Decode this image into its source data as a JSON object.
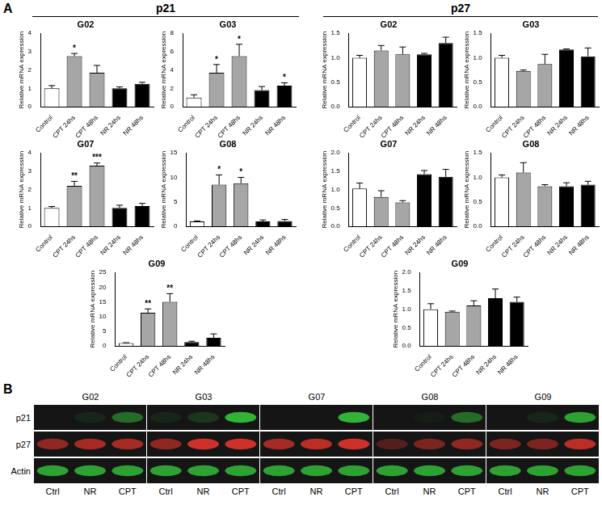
{
  "panel_a": {
    "label": "A",
    "group_titles": [
      "p21",
      "p27"
    ]
  },
  "chart_data": [
    {
      "type": "bar",
      "title": "G02",
      "y_label": "Relative mRNA expression",
      "categories": [
        "Control",
        "CPT 24hs",
        "CPT 48hs",
        "NR 24hs",
        "NR 48hs"
      ],
      "values": [
        1.0,
        2.75,
        1.85,
        1.0,
        1.25
      ],
      "errors": [
        0.15,
        0.15,
        0.4,
        0.08,
        0.08
      ],
      "significance": [
        null,
        "*",
        null,
        null,
        null
      ],
      "colors": [
        "#ffffff",
        "#a6a6a6",
        "#a6a6a6",
        "#000000",
        "#000000"
      ],
      "ylim": [
        0,
        4
      ],
      "yticks": [
        0,
        1,
        2,
        3,
        4
      ],
      "grid": false
    },
    {
      "type": "bar",
      "title": "G03",
      "y_label": "Relative mRNA expression",
      "categories": [
        "Control",
        "CPT 24hs",
        "CPT 48hs",
        "NR 24hs",
        "NR 48hs"
      ],
      "values": [
        1.0,
        3.7,
        5.5,
        1.8,
        2.3
      ],
      "errors": [
        0.3,
        0.9,
        1.3,
        0.4,
        0.3
      ],
      "significance": [
        null,
        "*",
        "*",
        null,
        "*"
      ],
      "colors": [
        "#ffffff",
        "#a6a6a6",
        "#a6a6a6",
        "#000000",
        "#000000"
      ],
      "ylim": [
        0,
        8
      ],
      "yticks": [
        0,
        2,
        4,
        6,
        8
      ],
      "grid": false
    },
    {
      "type": "bar",
      "title": "G07",
      "y_label": "Relative mRNA expression",
      "categories": [
        "Control",
        "CPT 24hs",
        "CPT 48hs",
        "NR 24hs",
        "NR 48hs"
      ],
      "values": [
        1.0,
        2.2,
        3.3,
        1.0,
        1.1
      ],
      "errors": [
        0.08,
        0.25,
        0.15,
        0.15,
        0.15
      ],
      "significance": [
        null,
        "**",
        "***",
        null,
        null
      ],
      "colors": [
        "#ffffff",
        "#a6a6a6",
        "#a6a6a6",
        "#000000",
        "#000000"
      ],
      "ylim": [
        0,
        4
      ],
      "yticks": [
        0,
        1,
        2,
        3,
        4
      ],
      "grid": false
    },
    {
      "type": "bar",
      "title": "G08",
      "y_label": "Relative mRNA expression",
      "categories": [
        "Control",
        "CPT 24hs",
        "CPT 48hs",
        "NR 24hs",
        "NR 48hs"
      ],
      "values": [
        1.0,
        8.5,
        8.8,
        1.0,
        1.1
      ],
      "errors": [
        0.1,
        2.0,
        1.2,
        0.3,
        0.3
      ],
      "significance": [
        null,
        "*",
        "*",
        null,
        null
      ],
      "colors": [
        "#ffffff",
        "#a6a6a6",
        "#a6a6a6",
        "#000000",
        "#000000"
      ],
      "ylim": [
        0,
        15
      ],
      "yticks": [
        0,
        5,
        10,
        15
      ],
      "grid": false
    },
    {
      "type": "bar",
      "title": "G09",
      "y_label": "Relative mRNA expression",
      "categories": [
        "Control",
        "CPT 24hs",
        "CPT 48hs",
        "NR 24hs",
        "NR 48hs"
      ],
      "values": [
        1.0,
        11.3,
        15.0,
        1.3,
        2.8
      ],
      "errors": [
        0.1,
        1.3,
        2.8,
        0.3,
        1.3
      ],
      "significance": [
        null,
        "**",
        "**",
        null,
        null
      ],
      "colors": [
        "#ffffff",
        "#a6a6a6",
        "#a6a6a6",
        "#000000",
        "#000000"
      ],
      "ylim": [
        0,
        25
      ],
      "yticks": [
        0,
        5,
        10,
        15,
        20,
        25
      ],
      "grid": false
    },
    {
      "type": "bar",
      "title": "G02",
      "y_label": "Relative mRNA expression",
      "categories": [
        "Control",
        "CPT 24hs",
        "CPT 48hs",
        "NR 24hs",
        "NR 48hs"
      ],
      "values": [
        1.0,
        1.15,
        1.07,
        1.07,
        1.3
      ],
      "errors": [
        0.05,
        0.1,
        0.15,
        0.02,
        0.12
      ],
      "significance": [
        null,
        null,
        null,
        null,
        null
      ],
      "colors": [
        "#ffffff",
        "#a6a6a6",
        "#a6a6a6",
        "#000000",
        "#000000"
      ],
      "ylim": [
        0,
        1.5
      ],
      "yticks": [
        {
          "value": 0,
          "label": "0.0"
        },
        {
          "value": 0.5,
          "label": "0.5"
        },
        {
          "value": 1,
          "label": "1.0"
        },
        {
          "value": 1.5,
          "label": "1.5"
        }
      ],
      "grid": false
    },
    {
      "type": "bar",
      "title": "G03",
      "y_label": "Relative mRNA expression",
      "categories": [
        "Control",
        "CPT 24hs",
        "CPT 48hs",
        "NR 24hs",
        "NR 48hs"
      ],
      "values": [
        1.0,
        0.73,
        0.87,
        1.17,
        1.03
      ],
      "errors": [
        0.05,
        0.02,
        0.2,
        0.01,
        0.17
      ],
      "significance": [
        null,
        null,
        null,
        null,
        null
      ],
      "colors": [
        "#ffffff",
        "#a6a6a6",
        "#a6a6a6",
        "#000000",
        "#000000"
      ],
      "ylim": [
        0,
        1.5
      ],
      "yticks": [
        {
          "value": 0,
          "label": "0.0"
        },
        {
          "value": 0.5,
          "label": "0.5"
        },
        {
          "value": 1,
          "label": "1.0"
        },
        {
          "value": 1.5,
          "label": "1.5"
        }
      ],
      "grid": false
    },
    {
      "type": "bar",
      "title": "G07",
      "y_label": "Relative mRNA expression",
      "categories": [
        "Control",
        "CPT 24hs",
        "CPT 48hs",
        "NR 24hs",
        "NR 48hs"
      ],
      "values": [
        1.03,
        0.8,
        0.65,
        1.42,
        1.35
      ],
      "errors": [
        0.15,
        0.17,
        0.05,
        0.1,
        0.2
      ],
      "significance": [
        null,
        null,
        null,
        null,
        null
      ],
      "colors": [
        "#ffffff",
        "#a6a6a6",
        "#a6a6a6",
        "#000000",
        "#000000"
      ],
      "ylim": [
        0,
        2
      ],
      "yticks": [
        {
          "value": 0,
          "label": "0.0"
        },
        {
          "value": 0.5,
          "label": "0.5"
        },
        {
          "value": 1,
          "label": "1.0"
        },
        {
          "value": 1.5,
          "label": "1.5"
        },
        {
          "value": 2,
          "label": "2.0"
        }
      ],
      "grid": false
    },
    {
      "type": "bar",
      "title": "G08",
      "y_label": "Relative mRNA expression",
      "categories": [
        "Control",
        "CPT 24hs",
        "CPT 48hs",
        "NR 24hs",
        "NR 48hs"
      ],
      "values": [
        1.0,
        1.1,
        0.82,
        0.82,
        0.85
      ],
      "errors": [
        0.05,
        0.2,
        0.03,
        0.07,
        0.07
      ],
      "significance": [
        null,
        null,
        null,
        null,
        null
      ],
      "colors": [
        "#ffffff",
        "#a6a6a6",
        "#a6a6a6",
        "#000000",
        "#000000"
      ],
      "ylim": [
        0,
        1.5
      ],
      "yticks": [
        {
          "value": 0,
          "label": "0.0"
        },
        {
          "value": 0.5,
          "label": "0.5"
        },
        {
          "value": 1,
          "label": "1.0"
        },
        {
          "value": 1.5,
          "label": "1.5"
        }
      ],
      "grid": false
    },
    {
      "type": "bar",
      "title": "G09",
      "y_label": "Relative mRNA expression",
      "categories": [
        "Control",
        "CPT 24hs",
        "CPT 48hs",
        "NR 24hs",
        "NR 48hs"
      ],
      "values": [
        1.0,
        0.93,
        1.1,
        1.3,
        1.2
      ],
      "errors": [
        0.15,
        0.02,
        0.13,
        0.25,
        0.13
      ],
      "significance": [
        null,
        null,
        null,
        null,
        null
      ],
      "colors": [
        "#ffffff",
        "#a6a6a6",
        "#a6a6a6",
        "#000000",
        "#000000"
      ],
      "ylim": [
        0,
        2
      ],
      "yticks": [
        {
          "value": 0,
          "label": "0.0"
        },
        {
          "value": 0.5,
          "label": "0.5"
        },
        {
          "value": 1,
          "label": "1.0"
        },
        {
          "value": 1.5,
          "label": "1.5"
        },
        {
          "value": 2,
          "label": "2.0"
        }
      ],
      "grid": false
    }
  ],
  "panel_b": {
    "label": "B",
    "rows": [
      "p21",
      "p27",
      "Actin"
    ],
    "row_colors": [
      "#33c43a",
      "#e3342b",
      "#33c43a"
    ],
    "lanes": [
      "Ctrl",
      "NR",
      "CPT"
    ],
    "blocks": [
      {
        "title": "G02",
        "intensity": [
          [
            0.0,
            0.1,
            0.5
          ],
          [
            0.6,
            0.7,
            0.7
          ],
          [
            0.8,
            0.8,
            0.8
          ]
        ]
      },
      {
        "title": "G03",
        "intensity": [
          [
            0.1,
            0.2,
            0.9
          ],
          [
            0.6,
            0.9,
            0.9
          ],
          [
            0.8,
            0.8,
            0.8
          ]
        ]
      },
      {
        "title": "G07",
        "intensity": [
          [
            0.0,
            0.0,
            0.9
          ],
          [
            0.7,
            0.8,
            0.9
          ],
          [
            0.8,
            0.8,
            0.8
          ]
        ]
      },
      {
        "title": "G08",
        "intensity": [
          [
            0.0,
            0.05,
            0.5
          ],
          [
            0.3,
            0.5,
            0.6
          ],
          [
            0.8,
            0.8,
            0.8
          ]
        ]
      },
      {
        "title": "G09",
        "intensity": [
          [
            0.0,
            0.1,
            0.8
          ],
          [
            0.5,
            0.5,
            0.8
          ],
          [
            0.8,
            0.8,
            0.8
          ]
        ]
      }
    ]
  }
}
